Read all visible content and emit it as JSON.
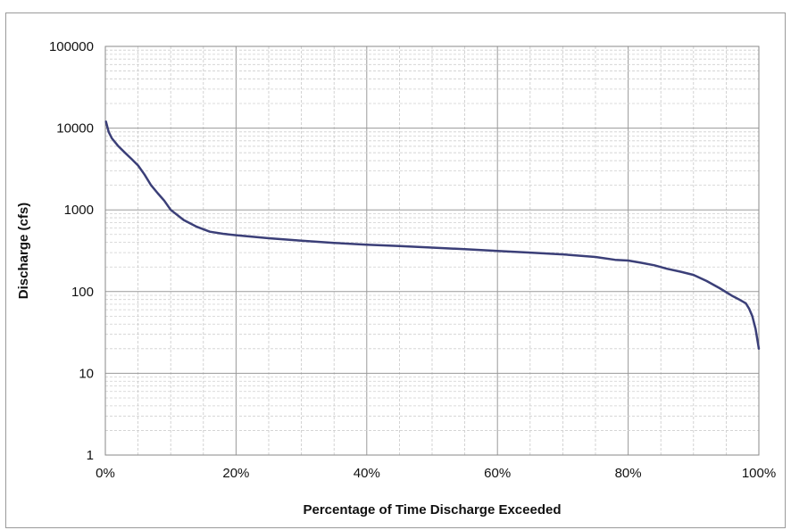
{
  "chart_data": {
    "type": "line",
    "title": "",
    "xlabel": "Percentage of Time Discharge Exceeded",
    "ylabel": "Discharge (cfs)",
    "xlim": [
      0,
      100
    ],
    "ylim": [
      1,
      100000
    ],
    "y_scale": "log",
    "grid": true,
    "x_ticks": [
      0,
      20,
      40,
      60,
      80,
      100
    ],
    "x_tick_labels": [
      "0%",
      "20%",
      "40%",
      "60%",
      "80%",
      "100%"
    ],
    "y_ticks": [
      1,
      10,
      100,
      1000,
      10000,
      100000
    ],
    "y_tick_labels": [
      "1",
      "10",
      "100",
      "1000",
      "10000",
      "100000"
    ],
    "series": [
      {
        "name": "",
        "color": "#3b3f78",
        "x": [
          0.1,
          0.5,
          1,
          2,
          3,
          4,
          5,
          6,
          7,
          8,
          9,
          10,
          12,
          14,
          16,
          18,
          20,
          25,
          30,
          35,
          40,
          45,
          50,
          55,
          60,
          65,
          70,
          75,
          78,
          80,
          82,
          84,
          86,
          88,
          90,
          92,
          94,
          96,
          97,
          98,
          98.5,
          99,
          99.5,
          100
        ],
        "y": [
          12000,
          9000,
          7500,
          6000,
          5000,
          4200,
          3500,
          2700,
          2000,
          1600,
          1300,
          1000,
          750,
          620,
          540,
          510,
          490,
          450,
          420,
          395,
          375,
          360,
          345,
          330,
          315,
          300,
          285,
          265,
          245,
          240,
          225,
          210,
          190,
          175,
          160,
          135,
          110,
          88,
          80,
          72,
          62,
          50,
          35,
          20
        ]
      }
    ]
  }
}
